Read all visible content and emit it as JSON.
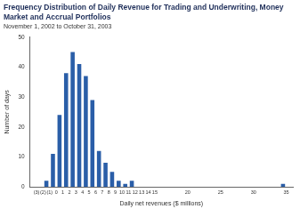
{
  "chart_data": {
    "type": "histogram",
    "title": "Frequency Distribution of Daily Revenue for Trading and Underwriting, Money Market and Accrual Portfolios",
    "subtitle": "November 1, 2002 to October 31, 2003",
    "x_label": "Daily net revenues ($ millions)",
    "y_label": "Number of days",
    "bins": [
      -2,
      -1,
      0,
      1,
      2,
      3,
      4,
      5,
      6,
      7,
      8,
      9,
      10,
      11,
      12,
      13,
      14,
      15,
      16,
      17,
      18,
      19,
      20,
      21,
      22,
      23,
      24,
      25,
      26,
      27,
      28,
      29,
      30,
      31,
      32,
      33,
      34,
      35
    ],
    "counts": [
      2,
      11,
      24,
      38,
      45,
      41,
      37,
      29,
      12,
      8,
      5,
      2,
      1,
      2,
      0,
      0,
      0,
      0,
      0,
      0,
      0,
      0,
      0,
      0,
      0,
      0,
      0,
      0,
      0,
      0,
      0,
      0,
      0,
      0,
      0,
      0,
      1
    ],
    "color": "#2a5ea8",
    "xlim": [
      -4,
      36
    ],
    "xticks": [
      {
        "value": -3,
        "label": "(3)"
      },
      {
        "value": -2,
        "label": "(2)"
      },
      {
        "value": -1,
        "label": "(1)"
      },
      0,
      1,
      2,
      3,
      4,
      5,
      6,
      7,
      8,
      9,
      10,
      11,
      12,
      13,
      14,
      15,
      20,
      25,
      30,
      35
    ],
    "ylim": [
      0,
      50
    ],
    "yticks": [
      0,
      10,
      20,
      30,
      40,
      50
    ],
    "grid": false
  }
}
